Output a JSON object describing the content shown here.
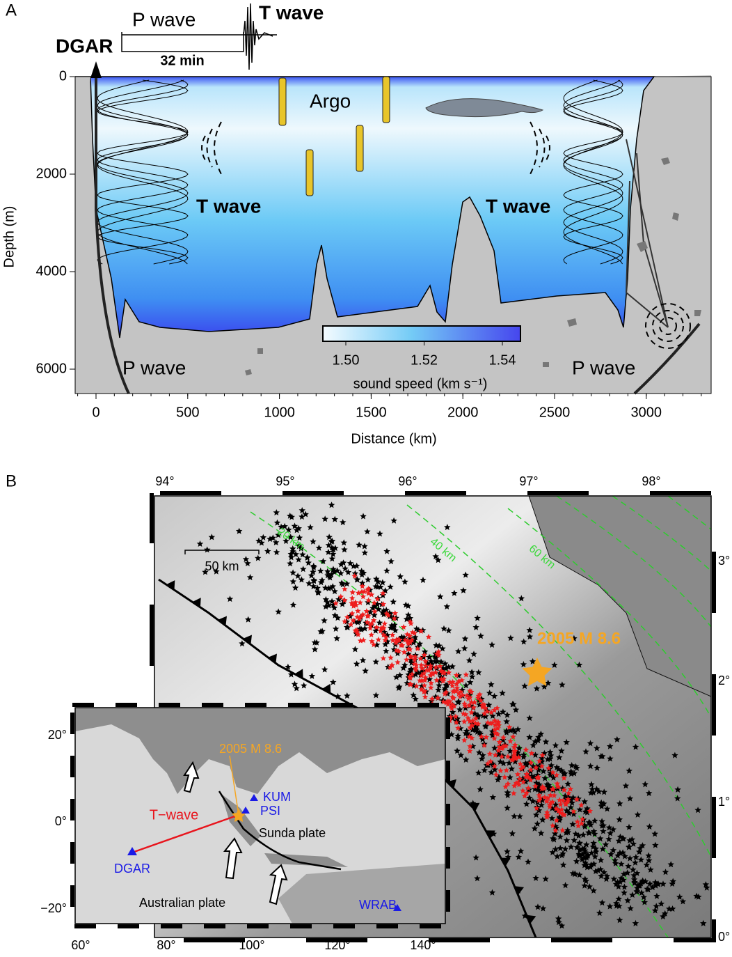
{
  "panel_a": {
    "label": "A",
    "trace": {
      "station": "DGAR",
      "p_wave": "P wave",
      "t_wave": "T wave",
      "time_scale": "32 min"
    },
    "annotations": {
      "argo": "Argo",
      "t_wave_left": "T wave",
      "t_wave_right": "T wave",
      "p_wave_left": "P wave",
      "p_wave_right": "P wave"
    },
    "colorbar": {
      "ticks": [
        "1.50",
        "1.52",
        "1.54"
      ],
      "label": "sound speed (km s⁻¹)"
    },
    "x_axis": {
      "label": "Distance (km)",
      "ticks": [
        "0",
        "500",
        "1000",
        "1500",
        "2000",
        "2500",
        "3000"
      ]
    },
    "y_axis": {
      "label": "Depth (m)",
      "ticks": [
        "0",
        "2000",
        "4000",
        "6000"
      ]
    }
  },
  "panel_b": {
    "label": "B",
    "map": {
      "top_ticks": [
        "94°",
        "95°",
        "96°",
        "97°",
        "98°"
      ],
      "right_ticks": [
        "3°",
        "2°",
        "1°",
        "0°"
      ],
      "depth_contours": [
        "20 km",
        "40 km",
        "60 km"
      ],
      "scale_bar": "50 km",
      "event": "2005 M 8.6"
    },
    "inset": {
      "left_ticks": [
        "20°",
        "0°",
        "−20°"
      ],
      "bottom_ticks": [
        "60°",
        "80°",
        "100°",
        "120°",
        "140°"
      ],
      "event": "2005 M 8.6",
      "stations": [
        "KUM",
        "PSI",
        "DGAR",
        "WRAB"
      ],
      "path": "T−wave",
      "plates": [
        "Sunda plate",
        "Australian plate"
      ]
    }
  }
}
